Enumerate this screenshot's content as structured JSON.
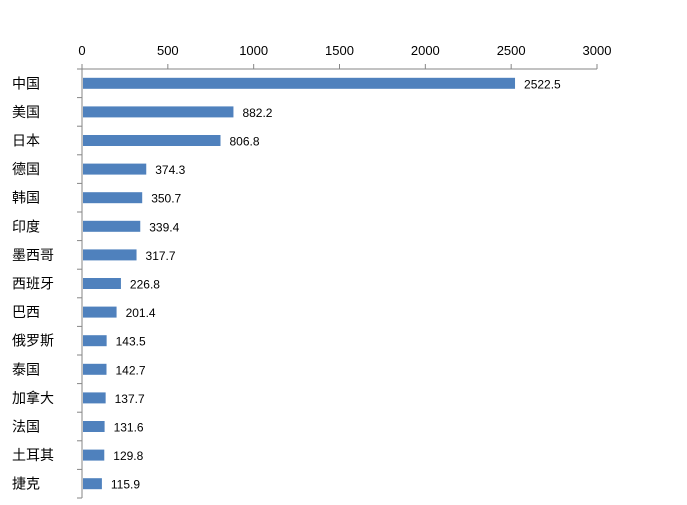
{
  "chart_data": {
    "type": "bar",
    "orientation": "horizontal",
    "title": "",
    "xlabel": "",
    "ylabel": "",
    "xlim": [
      0,
      3000
    ],
    "x_ticks": [
      0,
      500,
      1000,
      1500,
      2000,
      2500,
      3000
    ],
    "x_tick_labels": [
      "0",
      "500",
      "1000",
      "1500",
      "2000",
      "2500",
      "3000"
    ],
    "x_axis_position": "top",
    "grid": false,
    "legend": "none",
    "categories": [
      "中国",
      "美国",
      "日本",
      "德国",
      "韩国",
      "印度",
      "墨西哥",
      "西班牙",
      "巴西",
      "俄罗斯",
      "泰国",
      "加拿大",
      "法国",
      "土耳其",
      "捷克"
    ],
    "values": [
      2522.5,
      882.2,
      806.8,
      374.3,
      350.7,
      339.4,
      317.7,
      226.8,
      201.4,
      143.5,
      142.7,
      137.7,
      131.6,
      129.8,
      115.9
    ],
    "value_labels": [
      "2522.5",
      "882.2",
      "806.8",
      "374.3",
      "350.7",
      "339.4",
      "317.7",
      "226.8",
      "201.4",
      "143.5",
      "142.7",
      "137.7",
      "131.6",
      "129.8",
      "115.9"
    ],
    "bar_color": "#4F81BD",
    "axis_color": "#868686"
  }
}
